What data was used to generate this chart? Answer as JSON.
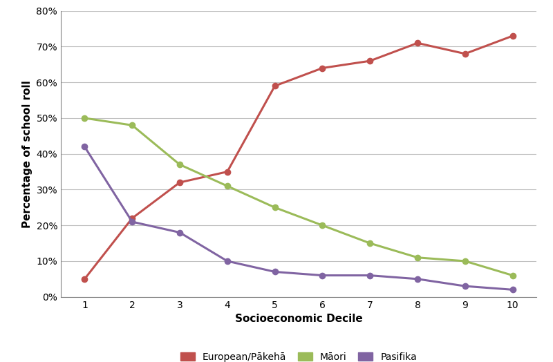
{
  "x": [
    1,
    2,
    3,
    4,
    5,
    6,
    7,
    8,
    9,
    10
  ],
  "european": [
    5,
    22,
    32,
    35,
    59,
    64,
    66,
    71,
    68,
    73
  ],
  "maori": [
    50,
    48,
    37,
    31,
    25,
    20,
    15,
    11,
    10,
    6
  ],
  "pasifika": [
    42,
    21,
    18,
    10,
    7,
    6,
    6,
    5,
    3,
    2
  ],
  "european_color": "#C0504D",
  "maori_color": "#9BBB59",
  "pasifika_color": "#8064A2",
  "xlabel": "Socioeconomic Decile",
  "ylabel": "Percentage of school roll",
  "ylim": [
    0,
    80
  ],
  "xlim_min": 0.5,
  "xlim_max": 10.5,
  "yticks": [
    0,
    10,
    20,
    30,
    40,
    50,
    60,
    70,
    80
  ],
  "xticks": [
    1,
    2,
    3,
    4,
    5,
    6,
    7,
    8,
    9,
    10
  ],
  "legend_labels": [
    "European/Pākehā",
    "Māori",
    "Pasifika"
  ],
  "line_width": 2.2,
  "marker_size": 6,
  "background_color": "#FFFFFF",
  "grid_color": "#C0C0C0",
  "tick_label_fontsize": 10,
  "axis_label_fontsize": 11,
  "legend_fontsize": 10,
  "spine_color": "#808080"
}
